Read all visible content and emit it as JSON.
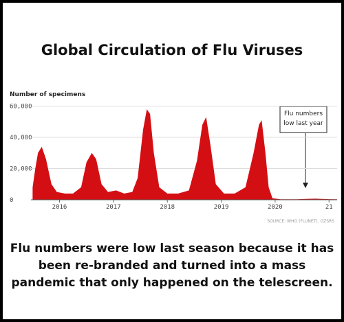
{
  "chart_data": {
    "type": "area",
    "title": "Global Circulation of Flu Viruses",
    "y_label": "Number of specimens",
    "source": "SOURCE: WHO (FLUNET), GZSRS",
    "annotation": [
      "Flu numbers",
      "low last year"
    ],
    "caption": [
      "Flu numbers were low last season because it has",
      "been re-branded and turned into a mass",
      "pandemic that only happened on the telescreen."
    ],
    "color": "#d40f14",
    "x": [
      2015.5,
      2015.55,
      2015.6,
      2015.67,
      2015.75,
      2015.85,
      2015.95,
      2016.1,
      2016.25,
      2016.4,
      2016.5,
      2016.6,
      2016.68,
      2016.78,
      2016.9,
      2017.05,
      2017.2,
      2017.35,
      2017.45,
      2017.55,
      2017.62,
      2017.68,
      2017.75,
      2017.85,
      2018.0,
      2018.2,
      2018.4,
      2018.55,
      2018.65,
      2018.72,
      2018.8,
      2018.9,
      2019.05,
      2019.25,
      2019.45,
      2019.6,
      2019.7,
      2019.75,
      2019.82,
      2019.88,
      2019.95,
      2020.1,
      2020.4,
      2020.6,
      2020.75,
      2021.0,
      2021.15
    ],
    "values": [
      8000,
      20000,
      30000,
      34000,
      26000,
      10000,
      5000,
      4000,
      4000,
      8000,
      24000,
      30000,
      26000,
      10000,
      5000,
      6000,
      4000,
      5000,
      14000,
      45000,
      58000,
      55000,
      30000,
      8000,
      4000,
      4000,
      6000,
      25000,
      48000,
      53000,
      35000,
      10000,
      4000,
      4000,
      8000,
      30000,
      48000,
      51000,
      30000,
      8000,
      1000,
      300,
      300,
      600,
      700,
      400,
      300
    ],
    "xlim": [
      2015.47,
      2021.15
    ],
    "xticks": [
      2016,
      2017,
      2018,
      2019,
      2020,
      {
        "value": 2021,
        "label": "21"
      }
    ],
    "ylim": [
      0,
      62000
    ],
    "yticks": [
      0,
      {
        "value": 20000,
        "label": "20,000"
      },
      {
        "value": 40000,
        "label": "40,000"
      },
      {
        "value": 60000,
        "label": "60,000"
      }
    ],
    "grid": true
  }
}
